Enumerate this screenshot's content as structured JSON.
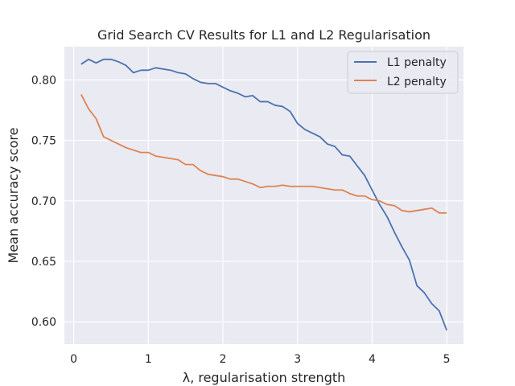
{
  "chart_data": {
    "type": "line",
    "title": "Grid Search CV Results for L1 and L2 Regularisation",
    "xlabel": "λ, regularisation strength",
    "ylabel": "Mean accuracy score",
    "xlim": [
      -0.125,
      5.225
    ],
    "ylim": [
      0.5815,
      0.8275
    ],
    "xticks": [
      0,
      1,
      2,
      3,
      4,
      5
    ],
    "xtick_labels": [
      "0",
      "1",
      "2",
      "3",
      "4",
      "5"
    ],
    "yticks": [
      0.6,
      0.65,
      0.7,
      0.75,
      0.8
    ],
    "ytick_labels": [
      "0.60",
      "0.65",
      "0.70",
      "0.75",
      "0.80"
    ],
    "grid": true,
    "background": "#eaeaf2",
    "grid_color": "#ffffff",
    "legend_position": "top-right",
    "x": [
      0.1,
      0.2,
      0.3,
      0.4,
      0.5,
      0.6,
      0.7,
      0.8,
      0.9,
      1.0,
      1.1,
      1.2,
      1.3,
      1.4,
      1.5,
      1.6,
      1.7,
      1.8,
      1.9,
      2.0,
      2.1,
      2.2,
      2.3,
      2.4,
      2.5,
      2.6,
      2.7,
      2.8,
      2.9,
      3.0,
      3.1,
      3.2,
      3.3,
      3.4,
      3.5,
      3.6,
      3.7,
      3.8,
      3.9,
      4.0,
      4.1,
      4.2,
      4.3,
      4.4,
      4.5,
      4.6,
      4.7,
      4.8,
      4.9,
      5.0
    ],
    "series": [
      {
        "name": "L1 penalty",
        "color": "#4c72b0",
        "values": [
          0.813,
          0.817,
          0.814,
          0.817,
          0.817,
          0.815,
          0.812,
          0.806,
          0.808,
          0.808,
          0.81,
          0.809,
          0.808,
          0.806,
          0.805,
          0.801,
          0.798,
          0.797,
          0.797,
          0.794,
          0.791,
          0.789,
          0.786,
          0.787,
          0.782,
          0.782,
          0.779,
          0.778,
          0.774,
          0.764,
          0.759,
          0.756,
          0.753,
          0.747,
          0.745,
          0.738,
          0.737,
          0.729,
          0.721,
          0.709,
          0.697,
          0.687,
          0.674,
          0.662,
          0.651,
          0.63,
          0.624,
          0.615,
          0.609,
          0.593
        ]
      },
      {
        "name": "L2 penalty",
        "color": "#dd8452",
        "values": [
          0.788,
          0.776,
          0.768,
          0.753,
          0.75,
          0.747,
          0.744,
          0.742,
          0.74,
          0.74,
          0.737,
          0.736,
          0.735,
          0.734,
          0.73,
          0.73,
          0.725,
          0.722,
          0.721,
          0.72,
          0.718,
          0.718,
          0.716,
          0.714,
          0.711,
          0.712,
          0.712,
          0.713,
          0.712,
          0.712,
          0.712,
          0.712,
          0.711,
          0.71,
          0.709,
          0.709,
          0.706,
          0.704,
          0.704,
          0.701,
          0.7,
          0.697,
          0.696,
          0.692,
          0.691,
          0.692,
          0.693,
          0.694,
          0.69,
          0.69
        ]
      }
    ]
  }
}
